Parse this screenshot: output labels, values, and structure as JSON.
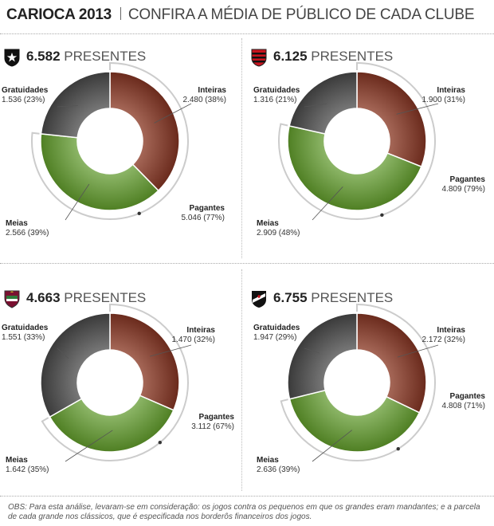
{
  "header": {
    "title": "CARIOCA 2013",
    "subtitle": "CONFIRA A MÉDIA DE PÚBLICO DE CADA CLUBE"
  },
  "colors": {
    "inteiras": "#6a2a1c",
    "meias": "#4f7f23",
    "gratuidades": "#3a3a3a",
    "ring": "#cccccc"
  },
  "chart_data": [
    {
      "type": "pie",
      "club_badge": "botafogo-crest-icon",
      "total": "6.582",
      "total_unit": "PRESENTES",
      "slices": [
        {
          "name": "Inteiras",
          "value": 2480,
          "value_label": "2.480",
          "percent": 38
        },
        {
          "name": "Meias",
          "value": 2566,
          "value_label": "2.566",
          "percent": 39
        },
        {
          "name": "Gratuidades",
          "value": 1536,
          "value_label": "1.536",
          "percent": 23
        }
      ],
      "pagantes": {
        "name": "Pagantes",
        "value": 5046,
        "value_label": "5.046",
        "percent": 77
      }
    },
    {
      "type": "pie",
      "club_badge": "flamengo-crest-icon",
      "total": "6.125",
      "total_unit": "PRESENTES",
      "slices": [
        {
          "name": "Inteiras",
          "value": 1900,
          "value_label": "1.900",
          "percent": 31
        },
        {
          "name": "Meias",
          "value": 2909,
          "value_label": "2.909",
          "percent": 48
        },
        {
          "name": "Gratuidades",
          "value": 1316,
          "value_label": "1.316",
          "percent": 21
        }
      ],
      "pagantes": {
        "name": "Pagantes",
        "value": 4809,
        "value_label": "4.809",
        "percent": 79
      }
    },
    {
      "type": "pie",
      "club_badge": "fluminense-crest-icon",
      "total": "4.663",
      "total_unit": "PRESENTES",
      "slices": [
        {
          "name": "Inteiras",
          "value": 1470,
          "value_label": "1.470",
          "percent": 32
        },
        {
          "name": "Meias",
          "value": 1642,
          "value_label": "1.642",
          "percent": 35
        },
        {
          "name": "Gratuidades",
          "value": 1551,
          "value_label": "1.551",
          "percent": 33
        }
      ],
      "pagantes": {
        "name": "Pagantes",
        "value": 3112,
        "value_label": "3.112",
        "percent": 67
      }
    },
    {
      "type": "pie",
      "club_badge": "vasco-crest-icon",
      "total": "6.755",
      "total_unit": "PRESENTES",
      "slices": [
        {
          "name": "Inteiras",
          "value": 2172,
          "value_label": "2.172",
          "percent": 32
        },
        {
          "name": "Meias",
          "value": 2636,
          "value_label": "2.636",
          "percent": 39
        },
        {
          "name": "Gratuidades",
          "value": 1947,
          "value_label": "1.947",
          "percent": 29
        }
      ],
      "pagantes": {
        "name": "Pagantes",
        "value": 4808,
        "value_label": "4.808",
        "percent": 71
      }
    }
  ],
  "footnote": "OBS: Para esta análise, levaram-se em consideração: os jogos contra os pequenos em que os grandes eram mandantes; e a parcela de cada grande nos clássicos, que é especificada nos borderôs financeiros dos jogos."
}
